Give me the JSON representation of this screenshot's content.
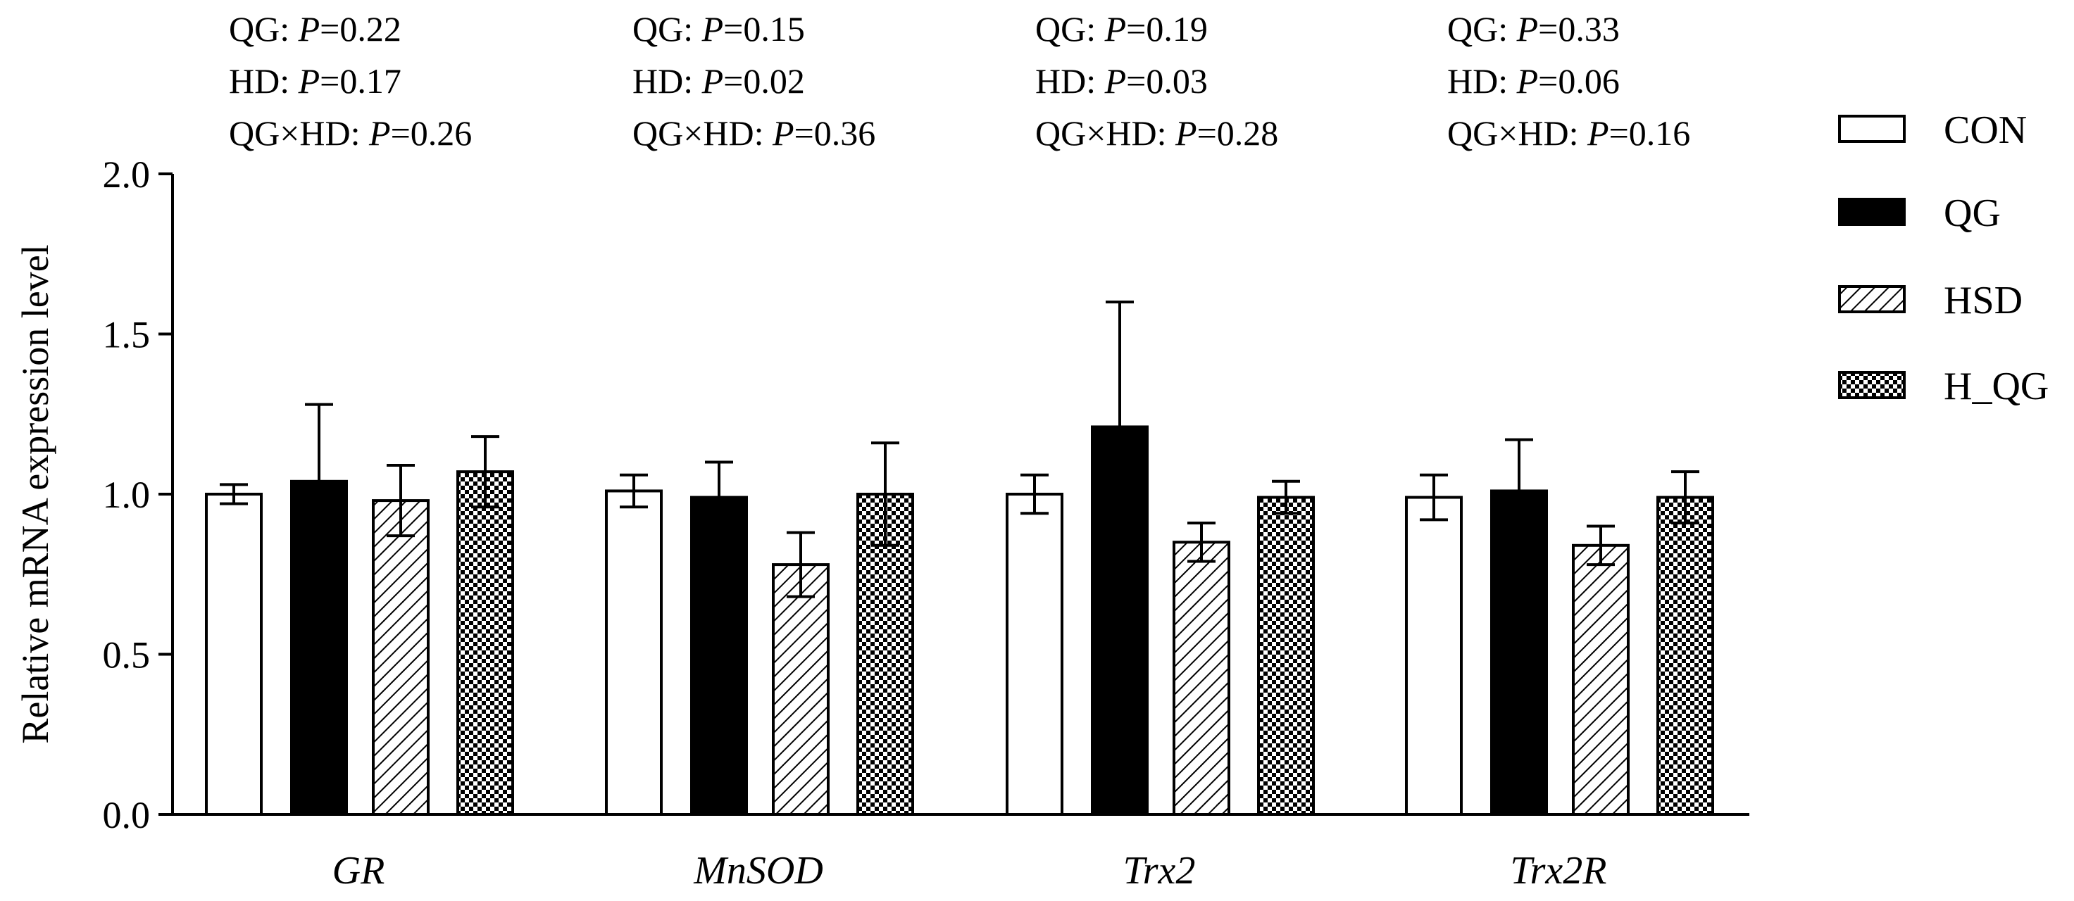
{
  "chart_data": {
    "type": "bar",
    "ylabel": "Relative mRNA expression level",
    "xlabel": "",
    "ylim": [
      0,
      2.0
    ],
    "yticks": [
      "0.0",
      "0.5",
      "1.0",
      "1.5",
      "2.0"
    ],
    "grid": false,
    "legend_position": "right",
    "categories": [
      "GR",
      "MnSOD",
      "Trx2",
      "Trx2R"
    ],
    "series": [
      {
        "name": "CON",
        "pattern": "open",
        "values": [
          1.0,
          1.01,
          1.0,
          0.99
        ],
        "errors": [
          0.03,
          0.05,
          0.06,
          0.07
        ]
      },
      {
        "name": "QG",
        "pattern": "solid",
        "values": [
          1.04,
          0.99,
          1.21,
          1.01
        ],
        "errors": [
          0.24,
          0.11,
          0.39,
          0.16
        ]
      },
      {
        "name": "HSD",
        "pattern": "hatch",
        "values": [
          0.98,
          0.78,
          0.85,
          0.84
        ],
        "errors": [
          0.11,
          0.1,
          0.06,
          0.06
        ]
      },
      {
        "name": "H_QG",
        "pattern": "check",
        "values": [
          1.07,
          1.0,
          0.99,
          0.99
        ],
        "errors": [
          0.11,
          0.16,
          0.05,
          0.08
        ]
      }
    ],
    "annotations": [
      {
        "category": "GR",
        "lines": [
          {
            "label": "QG: ",
            "p": "P",
            "value": "=0.22"
          },
          {
            "label": "HD: ",
            "p": "P",
            "value": "=0.17"
          },
          {
            "label": "QG×HD: ",
            "p": "P",
            "value": "=0.26"
          }
        ]
      },
      {
        "category": "MnSOD",
        "lines": [
          {
            "label": "QG: ",
            "p": "P",
            "value": "=0.15"
          },
          {
            "label": "HD: ",
            "p": "P",
            "value": "=0.02"
          },
          {
            "label": "QG×HD: ",
            "p": "P",
            "value": "=0.36"
          }
        ]
      },
      {
        "category": "Trx2",
        "lines": [
          {
            "label": "QG: ",
            "p": "P",
            "value": "=0.19"
          },
          {
            "label": "HD: ",
            "p": "P",
            "value": "=0.03"
          },
          {
            "label": "QG×HD: ",
            "p": "P",
            "value": "=0.28"
          }
        ]
      },
      {
        "category": "Trx2R",
        "lines": [
          {
            "label": "QG: ",
            "p": "P",
            "value": "=0.33"
          },
          {
            "label": "HD: ",
            "p": "P",
            "value": "=0.06"
          },
          {
            "label": "QG×HD: ",
            "p": "P",
            "value": "=0.16"
          }
        ]
      }
    ]
  }
}
